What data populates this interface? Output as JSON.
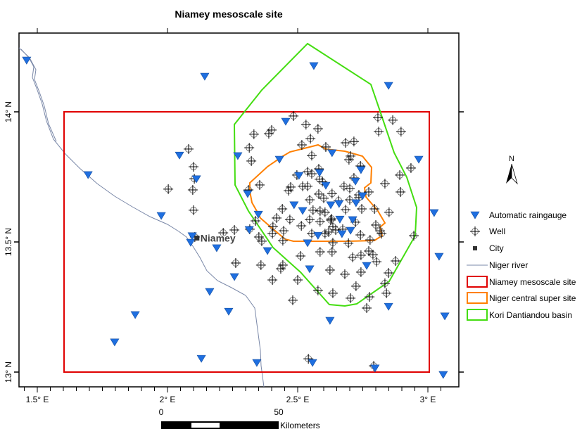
{
  "title": "Niamey mesoscale site",
  "axes": {
    "lon_ticks": [
      {
        "value": 1.5,
        "label": "1.5° E"
      },
      {
        "value": 2.0,
        "label": "2° E"
      },
      {
        "value": 2.5,
        "label": "2.5° E"
      },
      {
        "value": 3.0,
        "label": "3° E"
      }
    ],
    "lat_ticks": [
      {
        "value": 14.0,
        "label": "14° N"
      },
      {
        "value": 13.5,
        "label": "13.5° N"
      },
      {
        "value": 13.0,
        "label": "13° N"
      }
    ]
  },
  "city": {
    "name": "Niamey",
    "lon": 2.113,
    "lat": 13.515
  },
  "north_arrow_label": "N",
  "scale_bar": {
    "start_label": "0",
    "end_label": "50",
    "unit": "Kilometers"
  },
  "legend": {
    "raingauge": "Automatic raingauge",
    "well": "Well",
    "city": "City",
    "river": "Niger river",
    "mesoscale": "Niamey mesoscale site",
    "supersite": "Niger central super site",
    "basin": "Kori Dantiandou basin"
  },
  "colors": {
    "raingauge": "#1f6fe0",
    "mesoscale": "#e00000",
    "supersite": "#ff8000",
    "basin": "#44dd11",
    "river": "#7a88a8"
  },
  "mesoscale_extent": {
    "lon": [
      1.6,
      3.0
    ],
    "lat": [
      13.0,
      14.0
    ]
  },
  "raingauges": [
    [
      1.459,
      14.197
    ],
    [
      2.143,
      14.135
    ],
    [
      2.562,
      14.176
    ],
    [
      2.849,
      14.1
    ],
    [
      2.454,
      13.962
    ],
    [
      2.27,
      13.83
    ],
    [
      2.046,
      13.832
    ],
    [
      1.695,
      13.757
    ],
    [
      2.111,
      13.741
    ],
    [
      2.43,
      13.816
    ],
    [
      2.505,
      13.754
    ],
    [
      2.965,
      13.816
    ],
    [
      2.722,
      13.732
    ],
    [
      2.308,
      13.684
    ],
    [
      1.976,
      13.6
    ],
    [
      2.349,
      13.605
    ],
    [
      2.519,
      13.619
    ],
    [
      2.095,
      13.522
    ],
    [
      2.189,
      13.476
    ],
    [
      2.314,
      13.546
    ],
    [
      3.024,
      13.611
    ],
    [
      2.538,
      13.495
    ],
    [
      2.089,
      13.497
    ],
    [
      2.749,
      13.676
    ],
    [
      2.257,
      13.365
    ],
    [
      2.162,
      13.308
    ],
    [
      2.546,
      13.395
    ],
    [
      2.765,
      13.408
    ],
    [
      3.043,
      13.443
    ],
    [
      2.235,
      13.232
    ],
    [
      2.849,
      13.251
    ],
    [
      1.876,
      13.219
    ],
    [
      1.797,
      13.114
    ],
    [
      2.624,
      13.197
    ],
    [
      3.065,
      13.214
    ],
    [
      2.13,
      13.051
    ],
    [
      2.343,
      13.035
    ],
    [
      2.557,
      13.035
    ],
    [
      2.797,
      13.014
    ],
    [
      3.059,
      12.989
    ],
    [
      2.584,
      13.765
    ],
    [
      2.608,
      13.716
    ],
    [
      2.743,
      13.776
    ],
    [
      2.486,
      13.641
    ],
    [
      2.627,
      13.641
    ],
    [
      2.659,
      13.646
    ],
    [
      2.724,
      13.649
    ],
    [
      2.662,
      13.586
    ],
    [
      2.711,
      13.584
    ],
    [
      2.703,
      13.543
    ],
    [
      2.67,
      13.53
    ],
    [
      2.578,
      13.524
    ],
    [
      2.384,
      13.465
    ],
    [
      2.632,
      13.841
    ]
  ],
  "wells": [
    [
      2.484,
      13.984
    ],
    [
      2.532,
      13.951
    ],
    [
      2.578,
      13.935
    ],
    [
      2.4,
      13.93
    ],
    [
      2.389,
      13.916
    ],
    [
      2.332,
      13.914
    ],
    [
      2.808,
      13.978
    ],
    [
      2.865,
      13.968
    ],
    [
      2.811,
      13.924
    ],
    [
      2.897,
      13.924
    ],
    [
      2.549,
      13.897
    ],
    [
      2.516,
      13.873
    ],
    [
      2.608,
      13.865
    ],
    [
      2.684,
      13.881
    ],
    [
      2.716,
      13.886
    ],
    [
      2.314,
      13.862
    ],
    [
      2.554,
      13.832
    ],
    [
      2.322,
      13.811
    ],
    [
      2.703,
      13.83
    ],
    [
      2.697,
      13.816
    ],
    [
      2.741,
      13.792
    ],
    [
      2.935,
      13.784
    ],
    [
      2.497,
      13.757
    ],
    [
      2.538,
      13.77
    ],
    [
      2.581,
      13.781
    ],
    [
      2.554,
      13.762
    ],
    [
      2.584,
      13.741
    ],
    [
      2.595,
      13.732
    ],
    [
      2.716,
      13.746
    ],
    [
      2.354,
      13.719
    ],
    [
      2.473,
      13.711
    ],
    [
      2.519,
      13.714
    ],
    [
      2.538,
      13.714
    ],
    [
      2.465,
      13.697
    ],
    [
      2.678,
      13.714
    ],
    [
      2.7,
      13.705
    ],
    [
      2.632,
      13.686
    ],
    [
      2.735,
      13.681
    ],
    [
      2.735,
      13.67
    ],
    [
      2.773,
      13.692
    ],
    [
      2.835,
      13.724
    ],
    [
      2.892,
      13.757
    ],
    [
      2.895,
      13.692
    ],
    [
      2.581,
      13.684
    ],
    [
      2.6,
      13.668
    ],
    [
      2.546,
      13.662
    ],
    [
      2.7,
      13.662
    ],
    [
      2.657,
      13.659
    ],
    [
      2.441,
      13.627
    ],
    [
      2.559,
      13.622
    ],
    [
      2.586,
      13.619
    ],
    [
      2.605,
      13.614
    ],
    [
      2.684,
      13.624
    ],
    [
      2.746,
      13.627
    ],
    [
      2.795,
      13.627
    ],
    [
      2.851,
      13.614
    ],
    [
      2.419,
      13.592
    ],
    [
      2.47,
      13.586
    ],
    [
      2.546,
      13.586
    ],
    [
      2.63,
      13.589
    ],
    [
      2.338,
      13.581
    ],
    [
      2.405,
      13.559
    ],
    [
      2.514,
      13.562
    ],
    [
      2.586,
      13.578
    ],
    [
      2.635,
      13.559
    ],
    [
      2.8,
      13.565
    ],
    [
      2.446,
      13.543
    ],
    [
      2.619,
      13.538
    ],
    [
      2.646,
      13.546
    ],
    [
      2.816,
      13.543
    ],
    [
      2.741,
      13.527
    ],
    [
      2.351,
      13.519
    ],
    [
      2.946,
      13.524
    ],
    [
      2.214,
      13.535
    ],
    [
      2.257,
      13.546
    ],
    [
      2.316,
      13.549
    ],
    [
      2.627,
      13.584
    ],
    [
      2.443,
      13.505
    ],
    [
      2.403,
      13.532
    ],
    [
      2.362,
      13.503
    ],
    [
      2.554,
      13.532
    ],
    [
      2.605,
      13.532
    ],
    [
      2.635,
      13.497
    ],
    [
      2.695,
      13.495
    ],
    [
      2.778,
      13.508
    ],
    [
      2.822,
      13.532
    ],
    [
      2.773,
      13.465
    ],
    [
      2.789,
      13.451
    ],
    [
      2.803,
      13.424
    ],
    [
      2.743,
      13.449
    ],
    [
      2.711,
      13.441
    ],
    [
      2.632,
      13.462
    ],
    [
      2.586,
      13.462
    ],
    [
      2.511,
      13.446
    ],
    [
      2.876,
      13.427
    ],
    [
      2.262,
      13.419
    ],
    [
      2.359,
      13.411
    ],
    [
      2.443,
      13.411
    ],
    [
      2.435,
      13.397
    ],
    [
      2.743,
      13.384
    ],
    [
      2.849,
      13.381
    ],
    [
      2.681,
      13.376
    ],
    [
      2.624,
      13.392
    ],
    [
      2.403,
      13.354
    ],
    [
      2.5,
      13.354
    ],
    [
      2.724,
      13.33
    ],
    [
      2.835,
      13.341
    ],
    [
      2.841,
      13.303
    ],
    [
      2.776,
      13.289
    ],
    [
      2.703,
      13.284
    ],
    [
      2.578,
      13.314
    ],
    [
      2.635,
      13.303
    ],
    [
      2.481,
      13.276
    ],
    [
      2.765,
      13.246
    ],
    [
      2.081,
      13.857
    ],
    [
      2.1,
      13.789
    ],
    [
      2.103,
      13.743
    ],
    [
      2.003,
      13.703
    ],
    [
      2.097,
      13.7
    ],
    [
      2.1,
      13.622
    ],
    [
      2.105,
      13.519
    ],
    [
      2.541,
      13.051
    ],
    [
      2.792,
      13.024
    ],
    [
      2.311,
      13.7
    ],
    [
      2.722,
      13.576
    ],
    [
      2.673,
      13.549
    ]
  ]
}
